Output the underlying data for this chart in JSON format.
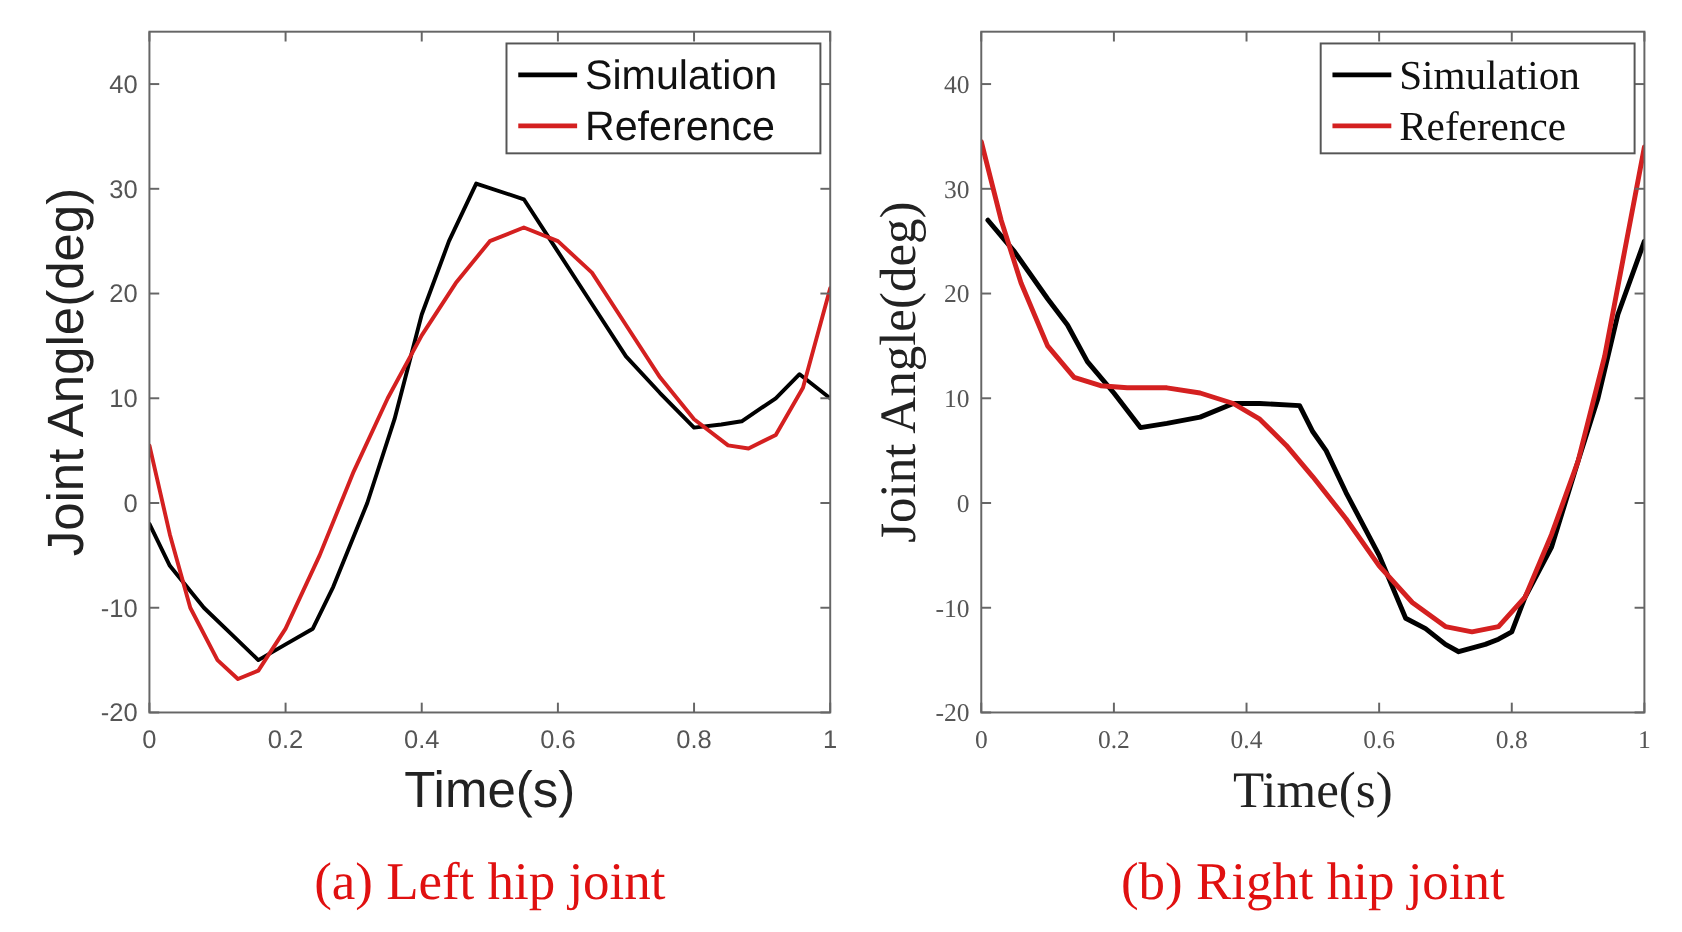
{
  "chart_data": [
    {
      "type": "line",
      "title": "(a) Left hip joint",
      "xlabel": "Time(s)",
      "ylabel": "Joint Angle(deg)",
      "xlim": [
        0,
        1
      ],
      "ylim": [
        -20,
        45
      ],
      "xticks": [
        0,
        0.2,
        0.4,
        0.6,
        0.8,
        1
      ],
      "yticks": [
        -20,
        -10,
        0,
        10,
        20,
        30,
        40
      ],
      "legend": "top right",
      "grid": false,
      "series": [
        {
          "name": "Simulation",
          "color": "#000000",
          "x": [
            0,
            0.03,
            0.08,
            0.12,
            0.16,
            0.2,
            0.24,
            0.27,
            0.32,
            0.36,
            0.4,
            0.44,
            0.48,
            0.55,
            0.6,
            0.65,
            0.7,
            0.75,
            0.8,
            0.84,
            0.87,
            0.92,
            0.955,
            1
          ],
          "values": [
            -2,
            -6,
            -10,
            -12.5,
            -15,
            -13.5,
            -12,
            -8,
            0,
            8,
            18,
            25,
            30.5,
            29,
            24,
            19,
            14,
            10.5,
            7.2,
            7.5,
            7.8,
            10,
            12.3,
            10
          ]
        },
        {
          "name": "Reference",
          "color": "#d42020",
          "x": [
            0,
            0.03,
            0.06,
            0.1,
            0.13,
            0.16,
            0.2,
            0.25,
            0.3,
            0.35,
            0.4,
            0.45,
            0.5,
            0.55,
            0.6,
            0.65,
            0.7,
            0.75,
            0.8,
            0.85,
            0.88,
            0.92,
            0.96,
            1
          ],
          "values": [
            5.5,
            -3,
            -10,
            -15,
            -16.8,
            -16,
            -12,
            -5,
            3,
            10,
            16,
            21,
            25,
            26.3,
            25,
            22,
            17,
            12,
            8,
            5.5,
            5.2,
            6.5,
            11,
            20.5
          ]
        }
      ]
    },
    {
      "type": "line",
      "title": "(b) Right hip joint",
      "xlabel": "Time(s)",
      "ylabel": "Joint Angle(deg)",
      "xlim": [
        0,
        1
      ],
      "ylim": [
        -20,
        45
      ],
      "xticks": [
        0,
        0.2,
        0.4,
        0.6,
        0.8,
        1
      ],
      "yticks": [
        -20,
        -10,
        0,
        10,
        20,
        30,
        40
      ],
      "legend": "top right",
      "grid": false,
      "series": [
        {
          "name": "Simulation",
          "color": "#000000",
          "x": [
            0.01,
            0.05,
            0.1,
            0.13,
            0.16,
            0.2,
            0.24,
            0.28,
            0.33,
            0.38,
            0.42,
            0.48,
            0.5,
            0.52,
            0.55,
            0.6,
            0.64,
            0.67,
            0.7,
            0.72,
            0.76,
            0.78,
            0.8,
            0.82,
            0.86,
            0.9,
            0.93,
            0.96,
            1
          ],
          "values": [
            27,
            24,
            19.5,
            17,
            13.5,
            10.5,
            7.2,
            7.6,
            8.2,
            9.5,
            9.5,
            9.3,
            6.8,
            5,
            1,
            -5,
            -11,
            -12,
            -13.5,
            -14.2,
            -13.5,
            -13,
            -12.3,
            -9,
            -4.2,
            4,
            10,
            18,
            25
          ]
        },
        {
          "name": "Reference",
          "color": "#d42020",
          "x": [
            0,
            0.03,
            0.06,
            0.1,
            0.14,
            0.18,
            0.22,
            0.28,
            0.33,
            0.38,
            0.42,
            0.46,
            0.5,
            0.55,
            0.6,
            0.65,
            0.7,
            0.74,
            0.78,
            0.82,
            0.86,
            0.9,
            0.94,
            0.97,
            1
          ],
          "values": [
            34.5,
            27,
            21,
            15,
            12,
            11.2,
            11,
            11,
            10.5,
            9.5,
            8,
            5.5,
            2.5,
            -1.5,
            -6,
            -9.5,
            -11.8,
            -12.3,
            -11.8,
            -9,
            -3,
            4,
            14,
            24,
            34
          ]
        }
      ]
    }
  ]
}
